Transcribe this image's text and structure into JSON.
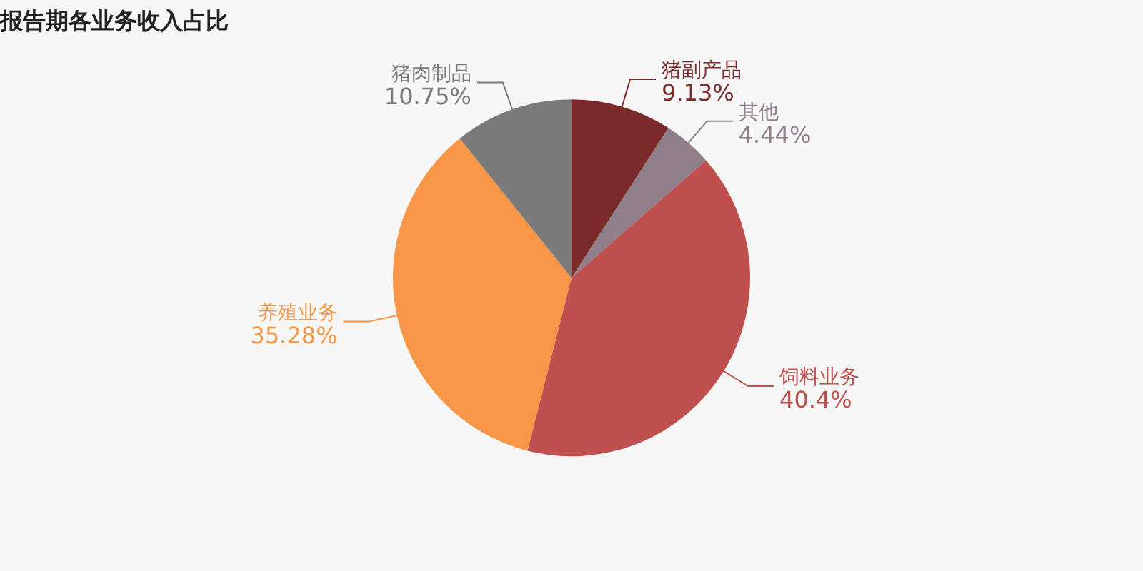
{
  "chart_data": {
    "type": "pie",
    "title": "报告期各业务收入占比",
    "categories": [
      "猪副产品",
      "其他",
      "饲料业务",
      "养殖业务",
      "猪肉制品"
    ],
    "values": [
      9.13,
      4.44,
      40.4,
      35.28,
      10.75
    ],
    "colors": [
      "#7b2a2a",
      "#8f7f8a",
      "#c0504d",
      "#f79646",
      "#7a7a7a"
    ],
    "value_labels": [
      "9.13%",
      "4.44%",
      "40.4%",
      "35.28%",
      "10.75%"
    ],
    "legend": false
  }
}
